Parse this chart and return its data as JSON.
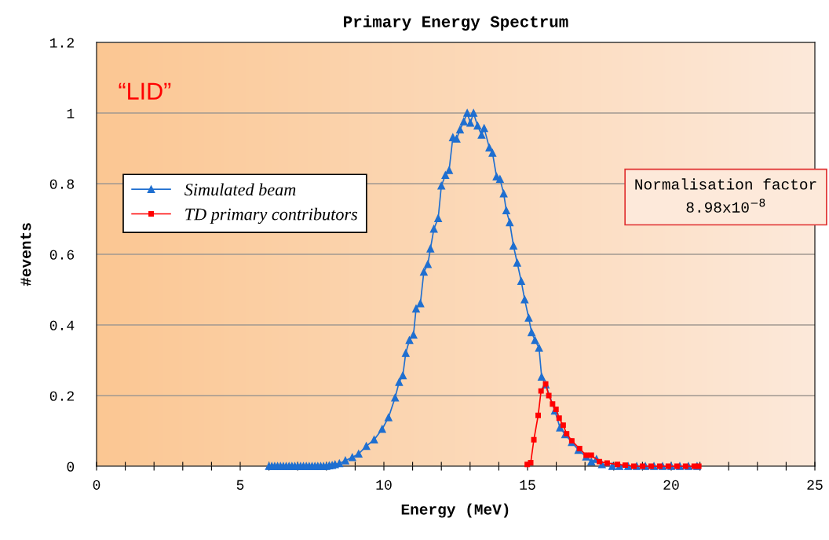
{
  "chart_data": {
    "type": "line",
    "title": "Primary Energy Spectrum",
    "xlabel": "Energy (MeV)",
    "ylabel": "#events",
    "xlim": [
      0,
      25
    ],
    "ylim": [
      0,
      1.2
    ],
    "xticks": [
      0,
      {
        "value": 1,
        "label": null
      },
      {
        "value": 2,
        "label": null
      },
      {
        "value": 3,
        "label": null
      },
      {
        "value": 4,
        "label": null
      },
      5,
      {
        "value": 6,
        "label": null
      },
      {
        "value": 7,
        "label": null
      },
      {
        "value": 8,
        "label": null
      },
      {
        "value": 9,
        "label": null
      },
      10,
      {
        "value": 11,
        "label": null
      },
      {
        "value": 12,
        "label": null
      },
      {
        "value": 13,
        "label": null
      },
      {
        "value": 14,
        "label": null
      },
      15,
      {
        "value": 16,
        "label": null
      },
      {
        "value": 17,
        "label": null
      },
      {
        "value": 18,
        "label": null
      },
      {
        "value": 19,
        "label": null
      },
      20,
      {
        "value": 21,
        "label": null
      },
      {
        "value": 22,
        "label": null
      },
      {
        "value": 23,
        "label": null
      },
      {
        "value": 24,
        "label": null
      },
      25
    ],
    "yticks": [
      0,
      0.2,
      0.4,
      0.6,
      0.8,
      1,
      1.2
    ],
    "grid": "y",
    "legend": "left",
    "annotations": [
      "“LID”",
      "Normalisation factor\n8.98x10$^{−8}$"
    ],
    "series": [
      {
        "name": "Simulated beam",
        "color": "#1f6fd0",
        "marker": "triangle",
        "x": [
          6.0,
          6.1,
          6.2,
          6.3,
          6.4,
          6.5,
          6.6,
          6.7,
          6.8,
          6.9,
          7.0,
          7.1,
          7.2,
          7.3,
          7.4,
          7.5,
          7.6,
          7.7,
          7.8,
          7.9,
          8.0,
          8.1,
          8.2,
          8.3,
          8.45,
          8.66,
          8.9,
          9.12,
          9.39,
          9.66,
          9.94,
          10.16,
          10.39,
          10.53,
          10.66,
          10.76,
          10.89,
          11.03,
          11.12,
          11.27,
          11.39,
          11.53,
          11.62,
          11.74,
          11.89,
          12.0,
          12.14,
          12.27,
          12.4,
          12.53,
          12.65,
          12.78,
          12.9,
          13.01,
          13.12,
          13.26,
          13.4,
          13.49,
          13.67,
          13.78,
          13.92,
          14.04,
          14.17,
          14.26,
          14.38,
          14.51,
          14.64,
          14.78,
          14.9,
          15.04,
          15.14,
          15.26,
          15.4,
          15.49,
          15.63,
          15.95,
          16.13,
          16.31,
          16.54,
          16.77,
          17.04,
          17.22,
          17.4,
          17.59,
          17.95,
          18.2,
          18.5,
          18.8,
          19.1,
          19.4,
          19.7,
          20.0,
          20.3,
          20.6,
          20.9
        ],
        "values": [
          0,
          0,
          0,
          0,
          0,
          0,
          0,
          0,
          0,
          0,
          0,
          0,
          0,
          0,
          0,
          0,
          0,
          0,
          0,
          0,
          0,
          0.002,
          0.003,
          0.005,
          0.008,
          0.016,
          0.025,
          0.035,
          0.057,
          0.075,
          0.105,
          0.138,
          0.194,
          0.238,
          0.257,
          0.32,
          0.357,
          0.372,
          0.446,
          0.461,
          0.55,
          0.572,
          0.616,
          0.672,
          0.702,
          0.794,
          0.824,
          0.838,
          0.931,
          0.927,
          0.953,
          0.976,
          1.0,
          0.972,
          1.0,
          0.964,
          0.938,
          0.957,
          0.902,
          0.887,
          0.82,
          0.813,
          0.772,
          0.724,
          0.69,
          0.624,
          0.576,
          0.524,
          0.472,
          0.42,
          0.379,
          0.357,
          0.335,
          0.253,
          0.231,
          0.157,
          0.109,
          0.09,
          0.068,
          0.046,
          0.027,
          0.013,
          0.02,
          0.005,
          0,
          0,
          0,
          0,
          0,
          0,
          0,
          0,
          0,
          0,
          0
        ]
      },
      {
        "name": "TD primary contributors",
        "color": "#ff0000",
        "marker": "square",
        "x": [
          14.99,
          15.11,
          15.22,
          15.37,
          15.47,
          15.63,
          15.74,
          15.87,
          15.99,
          16.1,
          16.24,
          16.36,
          16.54,
          16.81,
          17.04,
          17.22,
          17.5,
          17.77,
          18.13,
          18.4,
          18.7,
          19.0,
          19.3,
          19.6,
          19.9,
          20.2,
          20.5,
          20.8,
          20.96
        ],
        "values": [
          0.005,
          0.01,
          0.075,
          0.144,
          0.213,
          0.233,
          0.2,
          0.176,
          0.161,
          0.136,
          0.116,
          0.092,
          0.072,
          0.05,
          0.031,
          0.031,
          0.013,
          0.009,
          0.005,
          0.003,
          0,
          0,
          0,
          0,
          0,
          0,
          0,
          0,
          0
        ]
      }
    ]
  }
}
